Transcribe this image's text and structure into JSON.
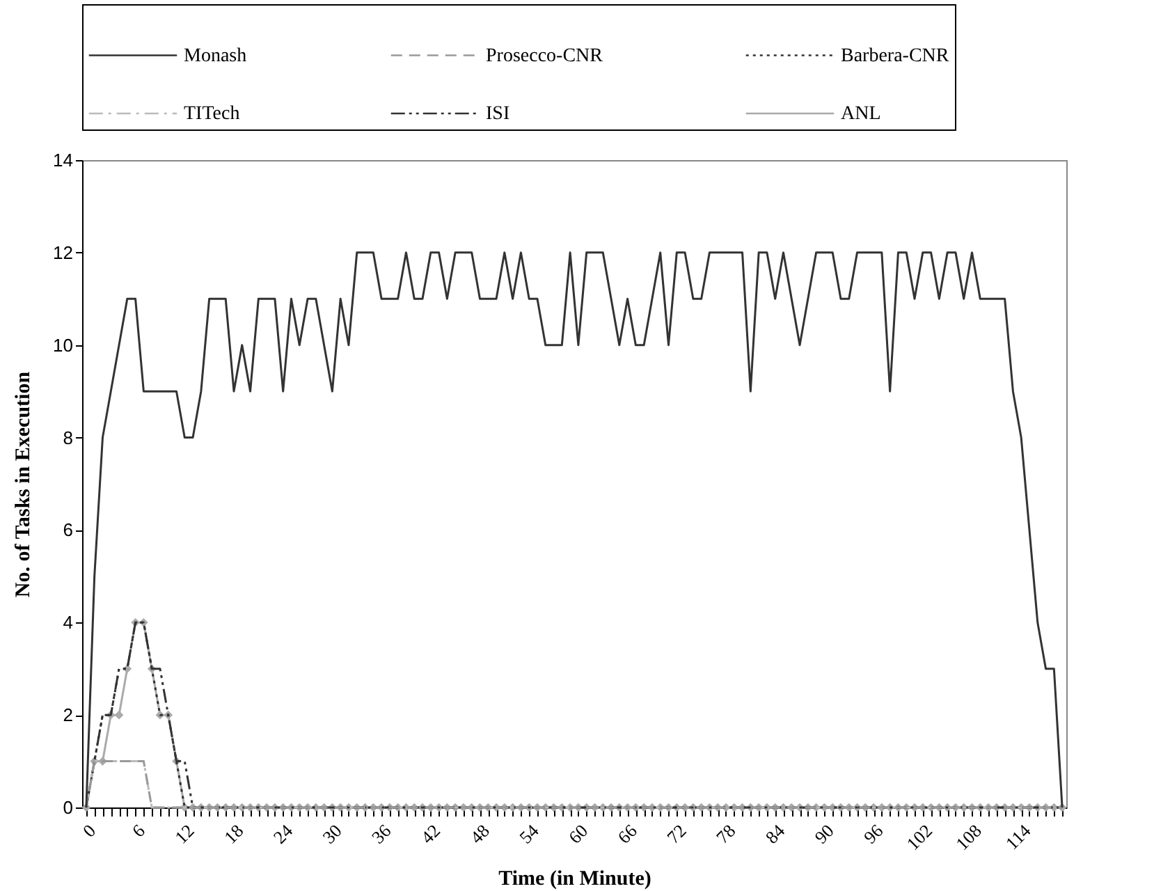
{
  "chart_data": {
    "type": "line",
    "xlabel": "Time (in Minute)",
    "ylabel": "No. of Tasks in Execution",
    "categories": [
      "0",
      null,
      null,
      null,
      null,
      null,
      "6",
      null,
      null,
      null,
      null,
      null,
      "12",
      null,
      null,
      null,
      null,
      null,
      "18",
      null,
      null,
      null,
      null,
      null,
      "24",
      null,
      null,
      null,
      null,
      null,
      "30",
      null,
      null,
      null,
      null,
      null,
      "36",
      null,
      null,
      null,
      null,
      null,
      "42",
      null,
      null,
      null,
      null,
      null,
      "48",
      null,
      null,
      null,
      null,
      null,
      "54",
      null,
      null,
      null,
      null,
      null,
      "60",
      null,
      null,
      null,
      null,
      null,
      "66",
      null,
      null,
      null,
      null,
      null,
      "72",
      null,
      null,
      null,
      null,
      null,
      "78",
      null,
      null,
      null,
      null,
      null,
      "84",
      null,
      null,
      null,
      null,
      null,
      "90",
      null,
      null,
      null,
      null,
      null,
      "96",
      null,
      null,
      null,
      null,
      null,
      "102",
      null,
      null,
      null,
      null,
      null,
      "108",
      null,
      null,
      null,
      null,
      null,
      "114",
      null,
      null,
      null,
      null,
      null
    ],
    "ylim": [
      0,
      14
    ],
    "yticks": [
      0,
      2,
      4,
      6,
      8,
      10,
      12,
      14
    ],
    "legend": "top",
    "series": [
      {
        "name": "Monash",
        "color": "#333333",
        "line_style": "solid",
        "values": [
          0,
          5,
          8,
          9,
          10,
          11,
          11,
          9,
          9,
          9,
          9,
          9,
          8,
          8,
          9,
          11,
          11,
          11,
          9,
          10,
          9,
          11,
          11,
          11,
          9,
          11,
          10,
          11,
          11,
          10,
          9,
          11,
          10,
          12,
          12,
          12,
          11,
          11,
          11,
          12,
          11,
          11,
          12,
          12,
          11,
          12,
          12,
          12,
          11,
          11,
          11,
          12,
          11,
          12,
          11,
          11,
          10,
          10,
          10,
          12,
          10,
          12,
          12,
          12,
          11,
          10,
          11,
          10,
          10,
          11,
          12,
          10,
          12,
          12,
          11,
          11,
          12,
          12,
          12,
          12,
          12,
          9,
          12,
          12,
          11,
          12,
          11,
          10,
          11,
          12,
          12,
          12,
          11,
          11,
          12,
          12,
          12,
          12,
          9,
          12,
          12,
          11,
          12,
          12,
          11,
          12,
          12,
          11,
          12,
          11,
          11,
          11,
          11,
          9,
          8,
          6,
          4,
          3,
          3,
          0
        ]
      },
      {
        "name": "Prosecco-CNR",
        "color": "#999999",
        "line_style": "dashed",
        "values": [
          0,
          1,
          1,
          1,
          1,
          1,
          1,
          1,
          0,
          0,
          0,
          0,
          0,
          0,
          0,
          0,
          0,
          0,
          0,
          0,
          0,
          0,
          0,
          0,
          0,
          0,
          0,
          0,
          0,
          0,
          0,
          0,
          0,
          0,
          0,
          0,
          0,
          0,
          0,
          0,
          0,
          0,
          0,
          0,
          0,
          0,
          0,
          0,
          0,
          0,
          0,
          0,
          0,
          0,
          0,
          0,
          0,
          0,
          0,
          0,
          0,
          0,
          0,
          0,
          0,
          0,
          0,
          0,
          0,
          0,
          0,
          0,
          0,
          0,
          0,
          0,
          0,
          0,
          0,
          0,
          0,
          0,
          0,
          0,
          0,
          0,
          0,
          0,
          0,
          0,
          0,
          0,
          0,
          0,
          0,
          0,
          0,
          0,
          0,
          0,
          0,
          0,
          0,
          0,
          0,
          0,
          0,
          0,
          0,
          0,
          0,
          0,
          0,
          0,
          0,
          0,
          0,
          0,
          0,
          0
        ]
      },
      {
        "name": "Barbera-CNR",
        "color": "#333333",
        "line_style": "dotted",
        "values": [
          0,
          1,
          2,
          2,
          3,
          3,
          4,
          4,
          3,
          2,
          2,
          1,
          0,
          0,
          0,
          0,
          0,
          0,
          0,
          0,
          0,
          0,
          0,
          0,
          0,
          0,
          0,
          0,
          0,
          0,
          0,
          0,
          0,
          0,
          0,
          0,
          0,
          0,
          0,
          0,
          0,
          0,
          0,
          0,
          0,
          0,
          0,
          0,
          0,
          0,
          0,
          0,
          0,
          0,
          0,
          0,
          0,
          0,
          0,
          0,
          0,
          0,
          0,
          0,
          0,
          0,
          0,
          0,
          0,
          0,
          0,
          0,
          0,
          0,
          0,
          0,
          0,
          0,
          0,
          0,
          0,
          0,
          0,
          0,
          0,
          0,
          0,
          0,
          0,
          0,
          0,
          0,
          0,
          0,
          0,
          0,
          0,
          0,
          0,
          0,
          0,
          0,
          0,
          0,
          0,
          0,
          0,
          0,
          0,
          0,
          0,
          0,
          0,
          0,
          0,
          0,
          0,
          0,
          0,
          0
        ]
      },
      {
        "name": "TITech",
        "color": "#bbbbbb",
        "line_style": "dashdot",
        "values": [
          0,
          1,
          1,
          1,
          1,
          1,
          1,
          1,
          0,
          0,
          0,
          0,
          0,
          0,
          0,
          0,
          0,
          0,
          0,
          0,
          0,
          0,
          0,
          0,
          0,
          0,
          0,
          0,
          0,
          0,
          0,
          0,
          0,
          0,
          0,
          0,
          0,
          0,
          0,
          0,
          0,
          0,
          0,
          0,
          0,
          0,
          0,
          0,
          0,
          0,
          0,
          0,
          0,
          0,
          0,
          0,
          0,
          0,
          0,
          0,
          0,
          0,
          0,
          0,
          0,
          0,
          0,
          0,
          0,
          0,
          0,
          0,
          0,
          0,
          0,
          0,
          0,
          0,
          0,
          0,
          0,
          0,
          0,
          0,
          0,
          0,
          0,
          0,
          0,
          0,
          0,
          0,
          0,
          0,
          0,
          0,
          0,
          0,
          0,
          0,
          0,
          0,
          0,
          0,
          0,
          0,
          0,
          0,
          0,
          0,
          0,
          0,
          0,
          0,
          0,
          0,
          0,
          0,
          0,
          0
        ]
      },
      {
        "name": "ISI",
        "color": "#333333",
        "line_style": "dashdotdot",
        "values": [
          0,
          1,
          2,
          2,
          3,
          3,
          4,
          4,
          3,
          3,
          2,
          1,
          1,
          0,
          0,
          0,
          0,
          0,
          0,
          0,
          0,
          0,
          0,
          0,
          0,
          0,
          0,
          0,
          0,
          0,
          0,
          0,
          0,
          0,
          0,
          0,
          0,
          0,
          0,
          0,
          0,
          0,
          0,
          0,
          0,
          0,
          0,
          0,
          0,
          0,
          0,
          0,
          0,
          0,
          0,
          0,
          0,
          0,
          0,
          0,
          0,
          0,
          0,
          0,
          0,
          0,
          0,
          0,
          0,
          0,
          0,
          0,
          0,
          0,
          0,
          0,
          0,
          0,
          0,
          0,
          0,
          0,
          0,
          0,
          0,
          0,
          0,
          0,
          0,
          0,
          0,
          0,
          0,
          0,
          0,
          0,
          0,
          0,
          0,
          0,
          0,
          0,
          0,
          0,
          0,
          0,
          0,
          0,
          0,
          0,
          0,
          0,
          0,
          0,
          0,
          0,
          0,
          0,
          0,
          0
        ]
      },
      {
        "name": "ANL",
        "color": "#aaaaaa",
        "line_style": "solid",
        "marker": "diamond",
        "values": [
          0,
          1,
          1,
          2,
          2,
          3,
          4,
          4,
          3,
          2,
          2,
          1,
          0,
          0,
          0,
          0,
          0,
          0,
          0,
          0,
          0,
          0,
          0,
          0,
          0,
          0,
          0,
          0,
          0,
          0,
          0,
          0,
          0,
          0,
          0,
          0,
          0,
          0,
          0,
          0,
          0,
          0,
          0,
          0,
          0,
          0,
          0,
          0,
          0,
          0,
          0,
          0,
          0,
          0,
          0,
          0,
          0,
          0,
          0,
          0,
          0,
          0,
          0,
          0,
          0,
          0,
          0,
          0,
          0,
          0,
          0,
          0,
          0,
          0,
          0,
          0,
          0,
          0,
          0,
          0,
          0,
          0,
          0,
          0,
          0,
          0,
          0,
          0,
          0,
          0,
          0,
          0,
          0,
          0,
          0,
          0,
          0,
          0,
          0,
          0,
          0,
          0,
          0,
          0,
          0,
          0,
          0,
          0,
          0,
          0,
          0,
          0,
          0,
          0,
          0,
          0,
          0,
          0,
          0,
          0
        ]
      }
    ]
  }
}
